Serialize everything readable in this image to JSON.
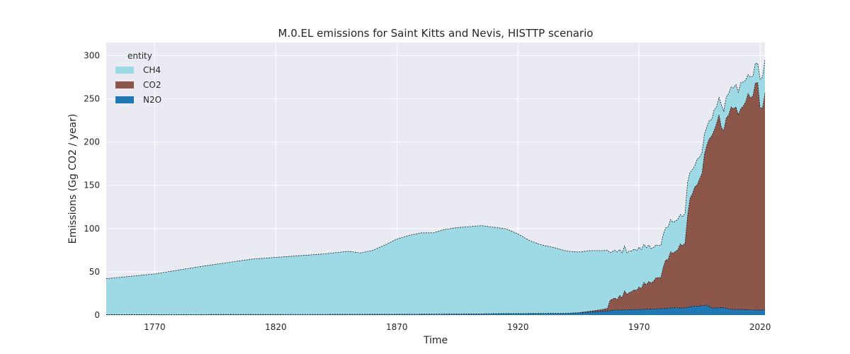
{
  "chart_data": {
    "type": "area",
    "stacked": true,
    "title": "M.0.EL emissions for Saint Kitts and Nevis, HISTTP scenario",
    "xlabel": "Time",
    "ylabel": "Emissions (Gg CO2 / year)",
    "xlim": [
      1750,
      2022
    ],
    "ylim": [
      0,
      315
    ],
    "xticks": [
      1770,
      1820,
      1870,
      1920,
      1970,
      2020
    ],
    "yticks": [
      0,
      50,
      100,
      150,
      200,
      250,
      300
    ],
    "grid": true,
    "legend": {
      "title": "entity",
      "position": "top-left"
    },
    "series": [
      {
        "name": "N2O",
        "color": "#1f77b4",
        "points": [
          [
            1750,
            0.5
          ],
          [
            1800,
            0.6
          ],
          [
            1850,
            0.7
          ],
          [
            1900,
            1.2
          ],
          [
            1915,
            1.7
          ],
          [
            1940,
            2.0
          ],
          [
            1945,
            2.6
          ],
          [
            1950,
            3.5
          ],
          [
            1955,
            4.5
          ],
          [
            1958,
            5.0
          ],
          [
            1960,
            5.8
          ],
          [
            1965,
            6.0
          ],
          [
            1970,
            6.5
          ],
          [
            1975,
            7.0
          ],
          [
            1980,
            7.5
          ],
          [
            1983,
            8.2
          ],
          [
            1985,
            8.5
          ],
          [
            1988,
            8.0
          ],
          [
            1990,
            9.0
          ],
          [
            1992,
            10.0
          ],
          [
            1995,
            10.5
          ],
          [
            1998,
            11.5
          ],
          [
            2000,
            8.0
          ],
          [
            2003,
            8.5
          ],
          [
            2005,
            8.5
          ],
          [
            2008,
            6.5
          ],
          [
            2012,
            6.5
          ],
          [
            2015,
            6.0
          ],
          [
            2018,
            6.0
          ],
          [
            2020,
            5.5
          ],
          [
            2022,
            6.5
          ]
        ]
      },
      {
        "name": "CO2",
        "color": "#8c564b",
        "points": [
          [
            1750,
            0
          ],
          [
            1940,
            0
          ],
          [
            1945,
            0.2
          ],
          [
            1950,
            1.0
          ],
          [
            1955,
            2.0
          ],
          [
            1957,
            3.0
          ],
          [
            1958,
            12
          ],
          [
            1960,
            14
          ],
          [
            1961,
            12
          ],
          [
            1962,
            17
          ],
          [
            1963,
            14
          ],
          [
            1964,
            22
          ],
          [
            1965,
            18
          ],
          [
            1966,
            20
          ],
          [
            1967,
            21
          ],
          [
            1968,
            23
          ],
          [
            1969,
            22
          ],
          [
            1970,
            26
          ],
          [
            1971,
            24
          ],
          [
            1972,
            31
          ],
          [
            1973,
            28
          ],
          [
            1974,
            32
          ],
          [
            1975,
            30
          ],
          [
            1976,
            32
          ],
          [
            1977,
            36
          ],
          [
            1978,
            36
          ],
          [
            1979,
            36
          ],
          [
            1980,
            48
          ],
          [
            1981,
            56
          ],
          [
            1982,
            56
          ],
          [
            1983,
            65
          ],
          [
            1984,
            63
          ],
          [
            1985,
            65
          ],
          [
            1986,
            67
          ],
          [
            1987,
            74
          ],
          [
            1988,
            72
          ],
          [
            1989,
            75
          ],
          [
            1990,
            105
          ],
          [
            1991,
            125
          ],
          [
            1992,
            130
          ],
          [
            1993,
            138
          ],
          [
            1994,
            140
          ],
          [
            1995,
            147
          ],
          [
            1996,
            153
          ],
          [
            1997,
            175
          ],
          [
            1998,
            185
          ],
          [
            1999,
            194
          ],
          [
            2000,
            199
          ],
          [
            2001,
            205
          ],
          [
            2002,
            213
          ],
          [
            2003,
            223
          ],
          [
            2004,
            208
          ],
          [
            2005,
            205
          ],
          [
            2006,
            220
          ],
          [
            2007,
            224
          ],
          [
            2008,
            234
          ],
          [
            2009,
            232
          ],
          [
            2010,
            234
          ],
          [
            2011,
            225
          ],
          [
            2012,
            232
          ],
          [
            2013,
            235
          ],
          [
            2014,
            240
          ],
          [
            2015,
            250
          ],
          [
            2016,
            245
          ],
          [
            2017,
            247
          ],
          [
            2018,
            262
          ],
          [
            2019,
            263
          ],
          [
            2020,
            233
          ],
          [
            2021,
            234
          ],
          [
            2022,
            250
          ]
        ]
      },
      {
        "name": "CH4",
        "color": "#9edae5",
        "points": [
          [
            1750,
            41.5
          ],
          [
            1770,
            47
          ],
          [
            1790,
            56
          ],
          [
            1810,
            64
          ],
          [
            1830,
            68
          ],
          [
            1840,
            70
          ],
          [
            1850,
            73
          ],
          [
            1855,
            71
          ],
          [
            1860,
            74
          ],
          [
            1865,
            80
          ],
          [
            1870,
            87
          ],
          [
            1875,
            91
          ],
          [
            1880,
            94
          ],
          [
            1885,
            94
          ],
          [
            1890,
            98
          ],
          [
            1895,
            100
          ],
          [
            1900,
            101
          ],
          [
            1905,
            102
          ],
          [
            1910,
            100
          ],
          [
            1915,
            98
          ],
          [
            1920,
            92
          ],
          [
            1925,
            84
          ],
          [
            1930,
            79
          ],
          [
            1935,
            76
          ],
          [
            1940,
            72
          ],
          [
            1945,
            70
          ],
          [
            1950,
            70
          ],
          [
            1955,
            68
          ],
          [
            1957,
            67
          ],
          [
            1958,
            55
          ],
          [
            1960,
            55
          ],
          [
            1961,
            55
          ],
          [
            1962,
            53
          ],
          [
            1963,
            52
          ],
          [
            1964,
            52
          ],
          [
            1965,
            48
          ],
          [
            1966,
            48
          ],
          [
            1967,
            47
          ],
          [
            1968,
            47
          ],
          [
            1969,
            46
          ],
          [
            1970,
            46
          ],
          [
            1971,
            45
          ],
          [
            1972,
            44
          ],
          [
            1973,
            43
          ],
          [
            1974,
            42
          ],
          [
            1975,
            40
          ],
          [
            1976,
            39
          ],
          [
            1977,
            38
          ],
          [
            1978,
            37
          ],
          [
            1979,
            37
          ],
          [
            1980,
            38
          ],
          [
            1981,
            37
          ],
          [
            1982,
            38
          ],
          [
            1983,
            37
          ],
          [
            1984,
            36
          ],
          [
            1985,
            35
          ],
          [
            1986,
            35
          ],
          [
            1987,
            34
          ],
          [
            1988,
            34
          ],
          [
            1989,
            34
          ],
          [
            1990,
            39
          ],
          [
            1991,
            30
          ],
          [
            1992,
            28
          ],
          [
            1993,
            24
          ],
          [
            1994,
            30
          ],
          [
            1995,
            25
          ],
          [
            1996,
            24
          ],
          [
            1997,
            23
          ],
          [
            1998,
            21
          ],
          [
            1999,
            21
          ],
          [
            2000,
            19
          ],
          [
            2001,
            24
          ],
          [
            2002,
            19
          ],
          [
            2003,
            20
          ],
          [
            2004,
            26
          ],
          [
            2005,
            22
          ],
          [
            2006,
            24
          ],
          [
            2007,
            25
          ],
          [
            2008,
            23
          ],
          [
            2009,
            24
          ],
          [
            2010,
            26
          ],
          [
            2011,
            26
          ],
          [
            2012,
            30
          ],
          [
            2013,
            28
          ],
          [
            2014,
            25
          ],
          [
            2015,
            22
          ],
          [
            2016,
            24
          ],
          [
            2017,
            23
          ],
          [
            2018,
            23
          ],
          [
            2019,
            22
          ],
          [
            2020,
            34
          ],
          [
            2021,
            35
          ],
          [
            2022,
            39
          ]
        ]
      }
    ]
  }
}
